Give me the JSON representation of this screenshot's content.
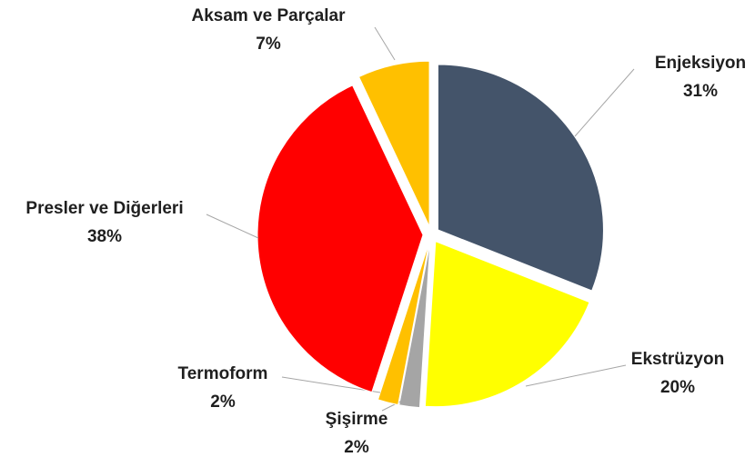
{
  "chart_data": {
    "type": "pie",
    "categories": [
      "Enjeksiyon",
      "Ekstrüzyon",
      "Şişirme",
      "Termoform",
      "Presler ve Diğerleri",
      "Aksam ve Parçalar"
    ],
    "values": [
      31,
      20,
      2,
      2,
      38,
      7
    ],
    "value_labels": [
      "31%",
      "20%",
      "2%",
      "2%",
      "38%",
      "7%"
    ],
    "colors": [
      "#44546a",
      "#ffff00",
      "#a5a5a5",
      "#ffc000",
      "#ff0000",
      "#ffc000"
    ]
  }
}
